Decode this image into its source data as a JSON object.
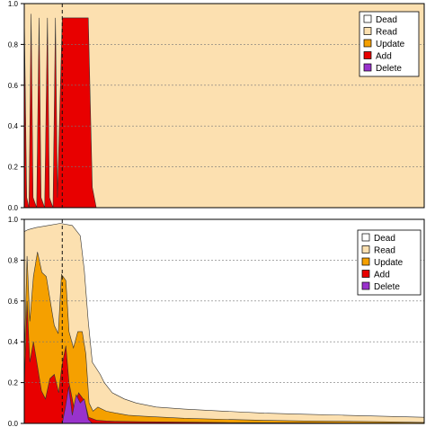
{
  "chart_data": [
    {
      "type": "area",
      "xlim": [
        0,
        100
      ],
      "ylim": [
        0,
        1.0
      ],
      "yticks": [
        "0.0",
        "0.2",
        "0.4",
        "0.6",
        "0.8",
        "1.0"
      ],
      "grid": true,
      "legend_position": "top-right",
      "vline_x": 9.5,
      "series": [
        {
          "name": "Dead",
          "color": "#ffffff",
          "points": []
        },
        {
          "name": "Read",
          "color": "#fce0b0",
          "points": [
            [
              0,
              1.0
            ],
            [
              100,
              1.0
            ]
          ]
        },
        {
          "name": "Update",
          "color": "#f5a000",
          "points": []
        },
        {
          "name": "Add",
          "color": "#e80000",
          "points": [
            [
              0,
              0.95
            ],
            [
              0.6,
              0.05
            ],
            [
              1.2,
              0.0
            ],
            [
              1.7,
              0.95
            ],
            [
              2.2,
              0.05
            ],
            [
              3.1,
              0.0
            ],
            [
              3.7,
              0.93
            ],
            [
              4.2,
              0.05
            ],
            [
              5.1,
              0.0
            ],
            [
              5.8,
              0.93
            ],
            [
              6.3,
              0.05
            ],
            [
              7.2,
              0.0
            ],
            [
              7.8,
              0.93
            ],
            [
              8.3,
              0.05
            ],
            [
              9.5,
              0.93
            ],
            [
              16.0,
              0.93
            ],
            [
              17.0,
              0.1
            ],
            [
              18.0,
              0.0
            ],
            [
              100,
              0.0
            ]
          ]
        },
        {
          "name": "Delete",
          "color": "#9932cc",
          "points": []
        }
      ]
    },
    {
      "type": "area",
      "xlim": [
        0,
        100
      ],
      "ylim": [
        0,
        1.0
      ],
      "yticks": [
        "0.0",
        "0.2",
        "0.4",
        "0.6",
        "0.8",
        "1.0"
      ],
      "grid": true,
      "legend_position": "top-right",
      "vline_x": 9.5,
      "series": [
        {
          "name": "Dead",
          "color": "#ffffff",
          "points": []
        },
        {
          "name": "Read",
          "color": "#fce0b0",
          "points": [
            [
              0,
              0.94
            ],
            [
              1,
              0.95
            ],
            [
              3,
              0.96
            ],
            [
              6,
              0.97
            ],
            [
              9,
              0.98
            ],
            [
              12,
              0.97
            ],
            [
              14,
              0.92
            ],
            [
              15,
              0.75
            ],
            [
              16,
              0.5
            ],
            [
              17,
              0.3
            ],
            [
              19,
              0.24
            ],
            [
              20,
              0.2
            ],
            [
              22,
              0.15
            ],
            [
              25,
              0.12
            ],
            [
              28,
              0.1
            ],
            [
              33,
              0.08
            ],
            [
              40,
              0.07
            ],
            [
              50,
              0.06
            ],
            [
              60,
              0.05
            ],
            [
              70,
              0.045
            ],
            [
              80,
              0.04
            ],
            [
              90,
              0.035
            ],
            [
              100,
              0.03
            ]
          ]
        },
        {
          "name": "Update",
          "color": "#f5a000",
          "points": [
            [
              0,
              0.3
            ],
            [
              0.7,
              0.82
            ],
            [
              1.4,
              0.5
            ],
            [
              2.3,
              0.72
            ],
            [
              3.3,
              0.84
            ],
            [
              4.4,
              0.74
            ],
            [
              5.5,
              0.72
            ],
            [
              6.5,
              0.6
            ],
            [
              7.5,
              0.48
            ],
            [
              8.5,
              0.44
            ],
            [
              9.3,
              0.73
            ],
            [
              10.4,
              0.7
            ],
            [
              11.2,
              0.45
            ],
            [
              12.3,
              0.37
            ],
            [
              13.4,
              0.45
            ],
            [
              14.5,
              0.45
            ],
            [
              15.4,
              0.34
            ],
            [
              16.2,
              0.1
            ],
            [
              17.2,
              0.06
            ],
            [
              18.4,
              0.08
            ],
            [
              20.5,
              0.06
            ],
            [
              23,
              0.05
            ],
            [
              26,
              0.04
            ],
            [
              30,
              0.035
            ],
            [
              35,
              0.03
            ],
            [
              40,
              0.025
            ],
            [
              50,
              0.02
            ],
            [
              60,
              0.015
            ],
            [
              70,
              0.012
            ],
            [
              80,
              0.01
            ],
            [
              90,
              0.008
            ],
            [
              100,
              0.005
            ]
          ]
        },
        {
          "name": "Add",
          "color": "#e80000",
          "points": [
            [
              0,
              0.18
            ],
            [
              0.7,
              0.6
            ],
            [
              1.4,
              0.3
            ],
            [
              2.3,
              0.4
            ],
            [
              3.3,
              0.28
            ],
            [
              4.3,
              0.16
            ],
            [
              5.3,
              0.12
            ],
            [
              6.4,
              0.22
            ],
            [
              7.5,
              0.24
            ],
            [
              8.6,
              0.15
            ],
            [
              9.4,
              0.28
            ],
            [
              10.4,
              0.38
            ],
            [
              11.2,
              0.2
            ],
            [
              12.4,
              0.08
            ],
            [
              13.6,
              0.15
            ],
            [
              15.1,
              0.11
            ],
            [
              16.1,
              0.03
            ],
            [
              18.2,
              0.015
            ],
            [
              20.5,
              0.012
            ],
            [
              23,
              0.01
            ],
            [
              30,
              0.008
            ],
            [
              40,
              0.006
            ],
            [
              50,
              0.004
            ],
            [
              60,
              0.003
            ],
            [
              80,
              0.002
            ],
            [
              100,
              0.001
            ]
          ]
        },
        {
          "name": "Delete",
          "color": "#9932cc",
          "points": [
            [
              0,
              0.0
            ],
            [
              9.5,
              0.0
            ],
            [
              10.3,
              0.08
            ],
            [
              11.1,
              0.18
            ],
            [
              12.0,
              0.04
            ],
            [
              13.0,
              0.14
            ],
            [
              14.0,
              0.1
            ],
            [
              15.0,
              0.12
            ],
            [
              16.0,
              0.02
            ],
            [
              17.0,
              0.0
            ],
            [
              100,
              0.0
            ]
          ]
        }
      ]
    }
  ]
}
